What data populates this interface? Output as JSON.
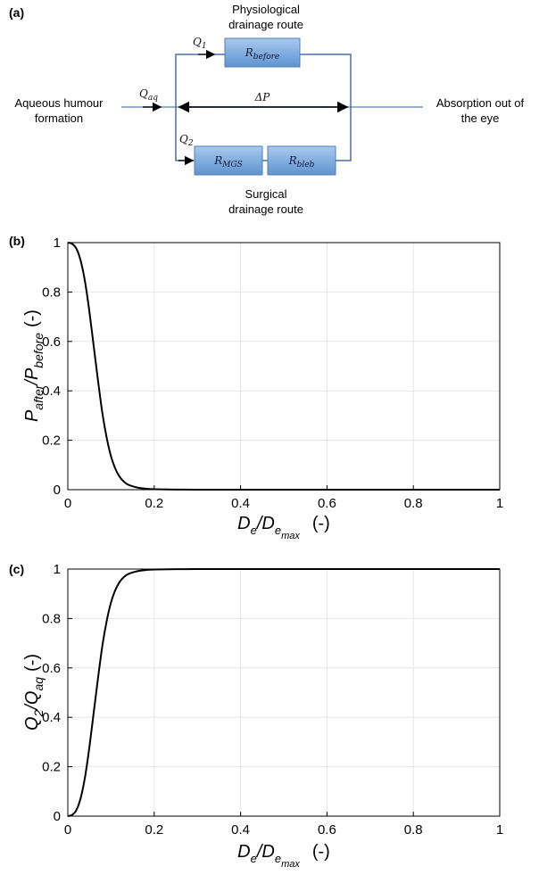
{
  "panel_a": {
    "label": "(a)",
    "physiological_line1": "Physiological",
    "physiological_line2": "drainage route",
    "surgical_line1": "Surgical",
    "surgical_line2": "drainage route",
    "left_line1": "Aqueous humour",
    "left_line2": "formation",
    "right_line1": "Absorption out of",
    "right_line2": "the eye",
    "q_aq_main": "Q",
    "q_aq_sub": "aq",
    "q1_main": "Q",
    "q1_sub": "1",
    "q2_main": "Q",
    "q2_sub": "2",
    "delta_p": "ΔP",
    "r_before_main": "R",
    "r_before_sub": "before",
    "r_mgs_main": "R",
    "r_mgs_sub": "MGS",
    "r_bleb_main": "R",
    "r_bleb_sub": "bleb",
    "box_color": "#6a9ed8"
  },
  "chart_data": [
    {
      "type": "line",
      "panel_label": "(b)",
      "xlabel_main": "D",
      "xlabel_sub": "e",
      "xlabel_sep": "/D",
      "xlabel_sub2": "e",
      "xlabel_sub3": "max",
      "xlabel_unit": "(-)",
      "ylabel_p1": "P",
      "ylabel_s1": "after",
      "ylabel_sep": "/P",
      "ylabel_s2": "before",
      "ylabel_unit": "(-)",
      "xlim": [
        0,
        1
      ],
      "ylim": [
        0,
        1
      ],
      "xticks": [
        "0",
        "0.2",
        "0.4",
        "0.6",
        "0.8",
        "1"
      ],
      "yticks": [
        "0",
        "0.2",
        "0.4",
        "0.6",
        "0.8",
        "1"
      ],
      "grid": true,
      "series": [
        {
          "x": [
            0,
            0.01,
            0.02,
            0.03,
            0.04,
            0.05,
            0.06,
            0.07,
            0.08,
            0.09,
            0.1,
            0.11,
            0.12,
            0.13,
            0.14,
            0.16,
            0.18,
            0.2,
            0.25,
            0.3,
            0.4,
            0.6,
            0.8,
            1.0
          ],
          "y": [
            1.0,
            0.995,
            0.975,
            0.925,
            0.84,
            0.72,
            0.58,
            0.44,
            0.31,
            0.21,
            0.135,
            0.085,
            0.052,
            0.032,
            0.02,
            0.009,
            0.004,
            0.002,
            0.0005,
            0.0002,
            0.0,
            0.0,
            0.0,
            0.0
          ]
        }
      ]
    },
    {
      "type": "line",
      "panel_label": "(c)",
      "xlabel_main": "D",
      "xlabel_sub": "e",
      "xlabel_sep": "/D",
      "xlabel_sub2": "e",
      "xlabel_sub3": "max",
      "xlabel_unit": "(-)",
      "ylabel_p1": "Q",
      "ylabel_s1": "2",
      "ylabel_sep": "/Q",
      "ylabel_s2": "aq",
      "ylabel_unit": "(-)",
      "xlim": [
        0,
        1
      ],
      "ylim": [
        0,
        1
      ],
      "xticks": [
        "0",
        "0.2",
        "0.4",
        "0.6",
        "0.8",
        "1"
      ],
      "yticks": [
        "0",
        "0.2",
        "0.4",
        "0.6",
        "0.8",
        "1"
      ],
      "grid": true,
      "series": [
        {
          "x": [
            0,
            0.01,
            0.02,
            0.03,
            0.04,
            0.05,
            0.06,
            0.07,
            0.08,
            0.09,
            0.1,
            0.11,
            0.12,
            0.13,
            0.14,
            0.16,
            0.18,
            0.2,
            0.25,
            0.3,
            0.4,
            0.6,
            0.8,
            1.0
          ],
          "y": [
            0.0,
            0.005,
            0.025,
            0.075,
            0.16,
            0.28,
            0.42,
            0.56,
            0.69,
            0.79,
            0.865,
            0.915,
            0.948,
            0.968,
            0.98,
            0.991,
            0.996,
            0.998,
            0.9995,
            0.9998,
            1.0,
            1.0,
            1.0,
            1.0
          ]
        }
      ]
    }
  ]
}
